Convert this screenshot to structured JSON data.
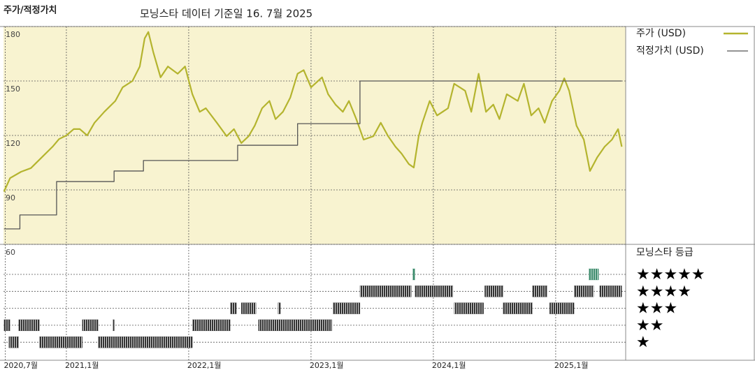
{
  "header": {
    "title": "주가/적정가치",
    "subtitle": "모닝스타 데이터 기준일 16. 7월 2025"
  },
  "chart_data": [
    {
      "type": "line",
      "xlim": [
        2020.486,
        2025.572
      ],
      "ylim": [
        60,
        180
      ],
      "yticks": [
        60,
        90,
        120,
        150,
        180
      ],
      "grid": true,
      "xticks": [
        {
          "value": 2020.5,
          "label": "2020,7월"
        },
        {
          "value": 2021,
          "label": "2021,1월"
        },
        {
          "value": 2022,
          "label": "2022,1월"
        },
        {
          "value": 2023,
          "label": "2023,1월"
        },
        {
          "value": 2024,
          "label": "2024,1월"
        },
        {
          "value": 2025,
          "label": "2025,1월"
        }
      ],
      "series": [
        {
          "name": "주가 (USD)",
          "color": "#b4b42e",
          "x": [
            2020.49,
            2020.54,
            2020.63,
            2020.71,
            2020.8,
            2020.89,
            2020.94,
            2021.0,
            2021.06,
            2021.11,
            2021.17,
            2021.23,
            2021.31,
            2021.4,
            2021.46,
            2021.54,
            2021.6,
            2021.64,
            2021.67,
            2021.71,
            2021.77,
            2021.83,
            2021.91,
            2021.97,
            2022.03,
            2022.09,
            2022.14,
            2022.23,
            2022.31,
            2022.37,
            2022.43,
            2022.49,
            2022.54,
            2022.6,
            2022.66,
            2022.71,
            2022.77,
            2022.83,
            2022.89,
            2022.94,
            2023.0,
            2023.09,
            2023.14,
            2023.2,
            2023.26,
            2023.31,
            2023.37,
            2023.43,
            2023.51,
            2023.57,
            2023.63,
            2023.69,
            2023.74,
            2023.8,
            2023.84,
            2023.88,
            2023.91,
            2023.97,
            2024.03,
            2024.12,
            2024.17,
            2024.26,
            2024.31,
            2024.37,
            2024.43,
            2024.49,
            2024.54,
            2024.6,
            2024.69,
            2024.74,
            2024.8,
            2024.86,
            2024.91,
            2024.97,
            2025.03,
            2025.07,
            2025.11,
            2025.17,
            2025.23,
            2025.28,
            2025.34,
            2025.4,
            2025.46,
            2025.51,
            2025.54
          ],
          "values": [
            89,
            96.5,
            100,
            102,
            108,
            114,
            118,
            120,
            123.5,
            123.5,
            120,
            127,
            133,
            139,
            146.5,
            150,
            158,
            173.5,
            177,
            166,
            152,
            158,
            154,
            158,
            142.7,
            133,
            135,
            127,
            119.6,
            123.5,
            115.8,
            119.6,
            125.4,
            135,
            139,
            129,
            133,
            140.8,
            154,
            156,
            146.5,
            152,
            142.7,
            137,
            133,
            139,
            129,
            117.7,
            119.6,
            127,
            119.6,
            113.8,
            110,
            104.2,
            102.3,
            119.6,
            127,
            139,
            131,
            135,
            148.5,
            144.6,
            133,
            154,
            133,
            137,
            129,
            142.7,
            139,
            148.5,
            131,
            135,
            127,
            139,
            144.6,
            151.5,
            144.6,
            125.4,
            117.7,
            100.4,
            108,
            113.8,
            117.7,
            123.5,
            113.8
          ]
        },
        {
          "name": "적정가치 (USD)",
          "color": "#555555",
          "step": "after",
          "x": [
            2020.49,
            2020.62,
            2020.92,
            2021.39,
            2021.63,
            2022.4,
            2022.89,
            2023.4,
            2025.54
          ],
          "values": [
            68.5,
            76.2,
            94.6,
            100.4,
            106.2,
            114.6,
            126.5,
            150,
            150
          ]
        }
      ]
    },
    {
      "type": "rating",
      "title": "모닝스타 등급",
      "rows": [
        {
          "label": "★★★★★",
          "color": "#3b8a6b",
          "segments": [
            [
              2023.83,
              2023.85
            ],
            [
              2025.27,
              2025.35
            ]
          ]
        },
        {
          "label": "★★★★",
          "color": "#333333",
          "segments": [
            [
              2023.4,
              2023.82
            ],
            [
              2023.85,
              2024.16
            ],
            [
              2024.42,
              2024.57
            ],
            [
              2024.81,
              2024.93
            ],
            [
              2025.15,
              2025.31
            ],
            [
              2025.36,
              2025.54
            ]
          ]
        },
        {
          "label": "★★★",
          "color": "#333333",
          "segments": [
            [
              2022.34,
              2022.39
            ],
            [
              2022.43,
              2022.55
            ],
            [
              2022.73,
              2022.75
            ],
            [
              2023.18,
              2023.4
            ],
            [
              2024.17,
              2024.41
            ],
            [
              2024.57,
              2024.81
            ],
            [
              2024.95,
              2025.15
            ]
          ]
        },
        {
          "label": "★★",
          "color": "#333333",
          "segments": [
            [
              2020.49,
              2020.54
            ],
            [
              2020.61,
              2020.78
            ],
            [
              2021.13,
              2021.26
            ],
            [
              2021.38,
              2021.39
            ],
            [
              2022.03,
              2022.34
            ],
            [
              2022.57,
              2023.17
            ]
          ]
        },
        {
          "label": "★",
          "color": "#333333",
          "segments": [
            [
              2020.53,
              2020.61
            ],
            [
              2020.78,
              2021.13
            ],
            [
              2021.26,
              2022.03
            ]
          ]
        }
      ]
    }
  ]
}
